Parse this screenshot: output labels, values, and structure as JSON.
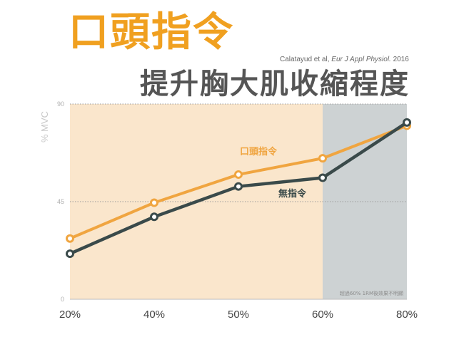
{
  "title": "口頭指令",
  "subtitle": "提升胸大肌收縮程度",
  "citation": {
    "authors": "Calatayud et al,",
    "journal": "Eur J Appl Physiol.",
    "year": "2016"
  },
  "chart_data": {
    "type": "line",
    "categories": [
      "20%",
      "40%",
      "50%",
      "60%",
      "80%"
    ],
    "ylabel": "% MVC",
    "ylim": [
      0,
      90
    ],
    "yticks": [
      0,
      45,
      90
    ],
    "grid": true,
    "series": [
      {
        "name": "口頭指令",
        "values": [
          28,
          44.5,
          57.5,
          65,
          80
        ],
        "color": "#f0a540"
      },
      {
        "name": "無指令",
        "values": [
          21,
          38,
          52,
          56,
          81.5
        ],
        "color": "#3a4a4a"
      }
    ],
    "shaded_region": {
      "from_category": "60%",
      "to_category": "80%",
      "label": "超過60% 1RM後效果不明顯",
      "color": "#cdd2d3"
    },
    "background_color": "#fae6cc"
  }
}
